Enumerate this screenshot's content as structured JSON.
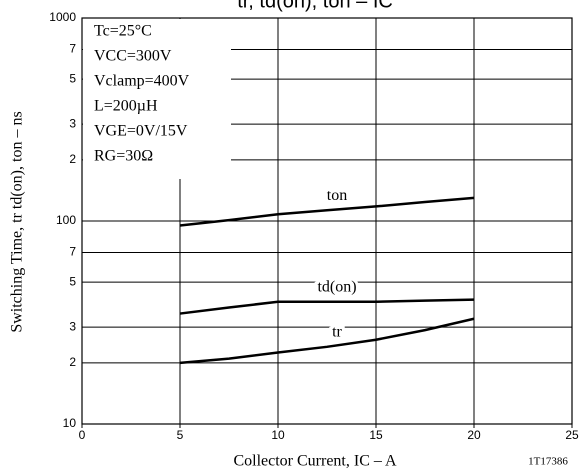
{
  "chart_data": {
    "type": "line",
    "title": "tr, td(on), ton – IC",
    "x_label": "Collector Current, IC – A",
    "y_label": "Switching Time, tr td(on), ton – ns",
    "conditions": [
      "Tc=25°C",
      "VCC=300V",
      "Vclamp=400V",
      "L=200µH",
      "VGE=0V/15V",
      "RG=30Ω"
    ],
    "figure_id": "1T17386",
    "x": [
      5,
      7.5,
      10,
      12.5,
      15,
      17.5,
      20
    ],
    "series": [
      {
        "name": "ton",
        "color": "#000000",
        "values": [
          95,
          101,
          108,
          113,
          118,
          124,
          130
        ]
      },
      {
        "name": "td(on)",
        "color": "#000000",
        "values": [
          35,
          37.5,
          40,
          40,
          40,
          40.5,
          41
        ]
      },
      {
        "name": "tr",
        "color": "#000000",
        "values": [
          20,
          21,
          22.5,
          24,
          26,
          29,
          33
        ]
      }
    ],
    "xlim": [
      0,
      25
    ],
    "xticks": [
      0,
      5,
      10,
      15,
      20,
      25
    ],
    "ylim": [
      10,
      1000
    ],
    "log_y": true,
    "yticks": [
      10,
      {
        "value": 20,
        "label": "2"
      },
      {
        "value": 30,
        "label": "3"
      },
      {
        "value": 50,
        "label": "5"
      },
      {
        "value": 70,
        "label": "7"
      },
      100,
      {
        "value": 200,
        "label": "2"
      },
      {
        "value": 300,
        "label": "3"
      },
      {
        "value": 500,
        "label": "5"
      },
      {
        "value": 700,
        "label": "7"
      },
      1000
    ],
    "grid": true
  }
}
